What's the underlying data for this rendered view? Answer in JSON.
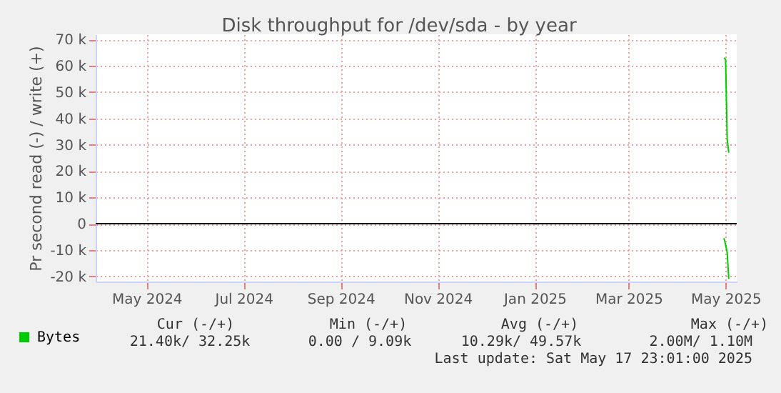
{
  "chart_data": {
    "type": "line",
    "title": "Disk throughput for /dev/sda - by year",
    "ylabel": "Pr second read (-) / write (+)",
    "xlim": [
      "2024-04-14",
      "2025-05-22"
    ],
    "xticks": [
      {
        "value": "2024-05-16",
        "label": "May 2024"
      },
      {
        "value": "2024-07-16",
        "label": "Jul 2024"
      },
      {
        "value": "2024-09-15",
        "label": "Sep 2024"
      },
      {
        "value": "2024-11-15",
        "label": "Nov 2024"
      },
      {
        "value": "2025-01-15",
        "label": "Jan 2025"
      },
      {
        "value": "2025-03-15",
        "label": "Mar 2025"
      },
      {
        "value": "2025-05-15",
        "label": "May 2025"
      }
    ],
    "ylim": [
      -22000,
      72000
    ],
    "yticks": [
      {
        "value": -20000,
        "label": "-20 k"
      },
      {
        "value": -10000,
        "label": "-10 k"
      },
      {
        "value": 0,
        "label": "0"
      },
      {
        "value": 10000,
        "label": "10 k"
      },
      {
        "value": 20000,
        "label": "20 k"
      },
      {
        "value": 30000,
        "label": "30 k"
      },
      {
        "value": 40000,
        "label": "40 k"
      },
      {
        "value": 50000,
        "label": "50 k"
      },
      {
        "value": 60000,
        "label": "60 k"
      },
      {
        "value": 70000,
        "label": "70 k"
      }
    ],
    "series": [
      {
        "name": "Bytes",
        "color": "#00cc00",
        "x": [
          "2025-05-14",
          "2025-05-15",
          "2025-05-16",
          "2025-05-17"
        ],
        "values": [
          63000,
          62500,
          32000,
          27000
        ]
      },
      {
        "color": "#00cc00",
        "x": [
          "2025-05-14",
          "2025-05-15",
          "2025-05-16",
          "2025-05-17"
        ],
        "values": [
          -5500,
          -8000,
          -11000,
          -21000
        ]
      }
    ],
    "ref_lines": [
      {
        "axis": "y",
        "value": 0,
        "color": "#000000"
      }
    ],
    "grid": true,
    "legend": "bottom left",
    "annotations": [
      "Cur (-/+)",
      "Min (-/+)",
      "Avg (-/+)",
      "Max (-/+)",
      "21.40k/  32.25k",
      "0.00 /    9.09k",
      "10.29k/  49.57k",
      "2.00M/   1.10M",
      "Last update: Sat May 17 23:01:00 2025"
    ]
  }
}
